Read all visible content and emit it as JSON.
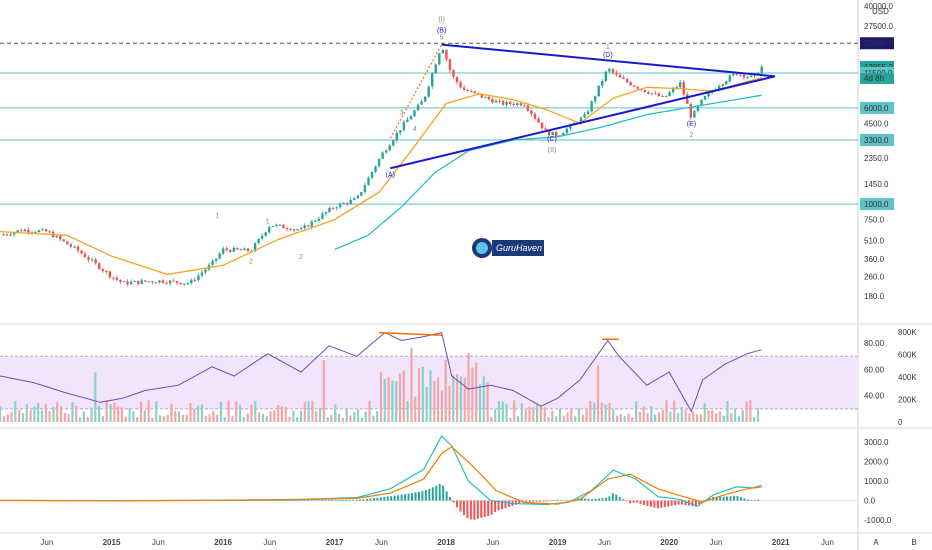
{
  "chart_data": [
    {
      "type": "candlestick",
      "title": "",
      "currency": "USD",
      "price_axis_log": true,
      "price_ticks": [
        "40000.0",
        "27500.0",
        "20000.0",
        "12855.2",
        "11500.0",
        "6000.0",
        "4500.0",
        "3300.0",
        "2350.0",
        "1450.0",
        "1000.0",
        "750.0",
        "510.0",
        "360.0",
        "260.0",
        "180.0"
      ],
      "price_values": [
        40000,
        27500,
        20000,
        12855.2,
        11500,
        6000,
        4500,
        3300,
        2350,
        1450,
        1000,
        750,
        510,
        360,
        260,
        180
      ],
      "horizontal_levels": [
        {
          "label": "20000.0",
          "value": 20000,
          "style": "dashed"
        },
        {
          "label": "11500.0",
          "value": 11500
        },
        {
          "label": "6000.0",
          "value": 6000
        },
        {
          "label": "3300.0",
          "value": 3300
        },
        {
          "label": "1000.0",
          "value": 1000
        }
      ],
      "last_price": {
        "label": "12855.2",
        "countdown": "4d 8h",
        "value": 12855.2
      },
      "time_labels": [
        "Jun",
        "2015",
        "Jun",
        "2016",
        "Jun",
        "2017",
        "Jun",
        "2018",
        "Jun",
        "2019",
        "Jun",
        "2020",
        "Jun",
        "2021",
        "Jun"
      ],
      "time_values": [
        2014.42,
        2015.0,
        2015.42,
        2016.0,
        2016.42,
        2017.0,
        2017.42,
        2018.0,
        2018.42,
        2019.0,
        2019.42,
        2020.0,
        2020.42,
        2021.0,
        2021.42
      ],
      "series": [
        {
          "name": "close",
          "color": "#26a69a",
          "points": [
            [
              2014.0,
              560
            ],
            [
              2014.2,
              620
            ],
            [
              2014.42,
              600
            ],
            [
              2014.7,
              420
            ],
            [
              2015.0,
              260
            ],
            [
              2015.1,
              230
            ],
            [
              2015.42,
              240
            ],
            [
              2015.7,
              230
            ],
            [
              2015.9,
              330
            ],
            [
              2016.0,
              430
            ],
            [
              2016.25,
              420
            ],
            [
              2016.42,
              680
            ],
            [
              2016.7,
              620
            ],
            [
              2017.0,
              960
            ],
            [
              2017.2,
              1100
            ],
            [
              2017.42,
              2500
            ],
            [
              2017.6,
              4200
            ],
            [
              2017.8,
              7000
            ],
            [
              2017.96,
              19500
            ],
            [
              2018.05,
              11000
            ],
            [
              2018.15,
              8500
            ],
            [
              2018.3,
              7500
            ],
            [
              2018.5,
              6500
            ],
            [
              2018.7,
              6500
            ],
            [
              2018.9,
              3800
            ],
            [
              2019.0,
              3600
            ],
            [
              2019.25,
              5200
            ],
            [
              2019.45,
              12500
            ],
            [
              2019.55,
              10500
            ],
            [
              2019.75,
              8500
            ],
            [
              2019.95,
              7200
            ],
            [
              2020.1,
              9500
            ],
            [
              2020.2,
              5000
            ],
            [
              2020.3,
              7000
            ],
            [
              2020.45,
              9300
            ],
            [
              2020.6,
              11500
            ],
            [
              2020.75,
              10500
            ],
            [
              2020.83,
              12855
            ]
          ]
        },
        {
          "name": "ema_fast",
          "color": "#f7a325",
          "points": [
            [
              2014.0,
              600
            ],
            [
              2014.6,
              560
            ],
            [
              2015.0,
              380
            ],
            [
              2015.5,
              270
            ],
            [
              2016.0,
              320
            ],
            [
              2016.5,
              520
            ],
            [
              2017.0,
              750
            ],
            [
              2017.4,
              1250
            ],
            [
              2017.7,
              2800
            ],
            [
              2018.0,
              6500
            ],
            [
              2018.3,
              7800
            ],
            [
              2018.6,
              7000
            ],
            [
              2018.9,
              5800
            ],
            [
              2019.2,
              4500
            ],
            [
              2019.5,
              7200
            ],
            [
              2019.8,
              8800
            ],
            [
              2020.1,
              8600
            ],
            [
              2020.4,
              8200
            ],
            [
              2020.7,
              9800
            ],
            [
              2020.83,
              10500
            ]
          ]
        },
        {
          "name": "ema_slow",
          "color": "#2bbcc6",
          "points": [
            [
              2017.0,
              430
            ],
            [
              2017.3,
              560
            ],
            [
              2017.6,
              950
            ],
            [
              2017.9,
              1800
            ],
            [
              2018.2,
              2700
            ],
            [
              2018.6,
              3300
            ],
            [
              2019.0,
              3500
            ],
            [
              2019.4,
              4200
            ],
            [
              2019.8,
              5300
            ],
            [
              2020.2,
              6100
            ],
            [
              2020.6,
              7000
            ],
            [
              2020.83,
              7600
            ]
          ]
        }
      ],
      "elliott_labels": [
        "(I)",
        "(B)",
        "5",
        "3",
        "4",
        "(A)",
        "1",
        "2",
        "(D)",
        "1",
        "(C)",
        "(II)",
        "(E)",
        "2",
        "1",
        "2"
      ],
      "triangle": {
        "a": [
          2017.5,
          1950
        ],
        "b": [
          2017.96,
          19500
        ],
        "c": [
          2020.95,
          10800
        ],
        "d": [
          2018.95,
          3700
        ]
      },
      "watermark": "GuruHaven"
    },
    {
      "type": "bar",
      "subtype": "volume_with_rsi",
      "rsi_ticks": [
        "80.00",
        "60.00",
        "40.00"
      ],
      "rsi_values": [
        80,
        60,
        40
      ],
      "volume_ticks": [
        "800K",
        "600K",
        "400K",
        "200K",
        "0"
      ],
      "volume_values": [
        800000,
        600000,
        400000,
        200000,
        0
      ],
      "rsi_band": [
        70,
        30
      ],
      "rsi_line": [
        [
          2014.0,
          55
        ],
        [
          2014.3,
          50
        ],
        [
          2014.6,
          42
        ],
        [
          2014.9,
          35
        ],
        [
          2015.1,
          38
        ],
        [
          2015.3,
          44
        ],
        [
          2015.6,
          48
        ],
        [
          2015.9,
          62
        ],
        [
          2016.1,
          55
        ],
        [
          2016.4,
          72
        ],
        [
          2016.7,
          58
        ],
        [
          2016.95,
          78
        ],
        [
          2017.2,
          70
        ],
        [
          2017.45,
          88
        ],
        [
          2017.6,
          82
        ],
        [
          2017.8,
          85
        ],
        [
          2017.96,
          88
        ],
        [
          2018.05,
          55
        ],
        [
          2018.2,
          45
        ],
        [
          2018.4,
          48
        ],
        [
          2018.6,
          44
        ],
        [
          2018.85,
          32
        ],
        [
          2019.0,
          38
        ],
        [
          2019.2,
          52
        ],
        [
          2019.45,
          82
        ],
        [
          2019.55,
          70
        ],
        [
          2019.8,
          48
        ],
        [
          2020.0,
          58
        ],
        [
          2020.2,
          28
        ],
        [
          2020.3,
          52
        ],
        [
          2020.5,
          64
        ],
        [
          2020.7,
          72
        ],
        [
          2020.83,
          75
        ]
      ]
    },
    {
      "type": "bar",
      "subtype": "macd",
      "ticks": [
        "3000.0",
        "2000.0",
        "1000.0",
        "0.0",
        "-1000.0"
      ],
      "tick_values": [
        3000,
        2000,
        1000,
        0,
        -1000
      ],
      "macd_line": [
        [
          2014.0,
          10
        ],
        [
          2015.0,
          -10
        ],
        [
          2016.0,
          20
        ],
        [
          2016.7,
          60
        ],
        [
          2017.2,
          150
        ],
        [
          2017.5,
          600
        ],
        [
          2017.8,
          1600
        ],
        [
          2017.96,
          3300
        ],
        [
          2018.05,
          2800
        ],
        [
          2018.2,
          1000
        ],
        [
          2018.4,
          0
        ],
        [
          2018.6,
          -150
        ],
        [
          2018.9,
          -200
        ],
        [
          2019.1,
          -80
        ],
        [
          2019.3,
          500
        ],
        [
          2019.5,
          1550
        ],
        [
          2019.7,
          1100
        ],
        [
          2019.9,
          200
        ],
        [
          2020.1,
          60
        ],
        [
          2020.25,
          -300
        ],
        [
          2020.4,
          300
        ],
        [
          2020.6,
          700
        ],
        [
          2020.75,
          650
        ],
        [
          2020.83,
          780
        ]
      ],
      "signal_line": [
        [
          2014.0,
          10
        ],
        [
          2015.0,
          -5
        ],
        [
          2016.0,
          15
        ],
        [
          2016.7,
          50
        ],
        [
          2017.2,
          110
        ],
        [
          2017.5,
          380
        ],
        [
          2017.8,
          1100
        ],
        [
          2017.96,
          2400
        ],
        [
          2018.05,
          2750
        ],
        [
          2018.25,
          1700
        ],
        [
          2018.45,
          500
        ],
        [
          2018.7,
          -100
        ],
        [
          2019.0,
          -180
        ],
        [
          2019.2,
          60
        ],
        [
          2019.45,
          1100
        ],
        [
          2019.65,
          1350
        ],
        [
          2019.9,
          600
        ],
        [
          2020.1,
          250
        ],
        [
          2020.3,
          -80
        ],
        [
          2020.5,
          300
        ],
        [
          2020.7,
          600
        ],
        [
          2020.83,
          700
        ]
      ]
    }
  ],
  "axis_buttons": [
    "A",
    "B"
  ]
}
